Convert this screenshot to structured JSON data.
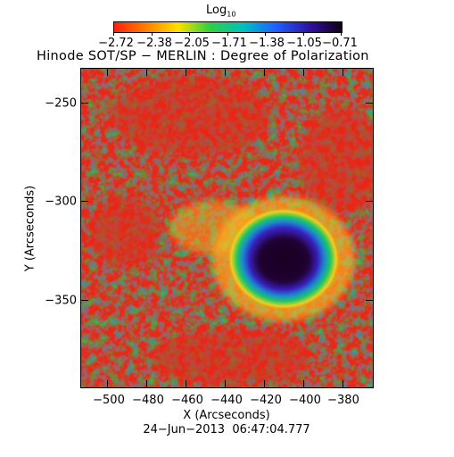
{
  "colorbar": {
    "title": "Log",
    "title_sub": "10",
    "tick_labels": [
      "−2.72",
      "−2.38",
      "−2.05",
      "−1.71",
      "−1.38",
      "−1.05",
      "−0.71"
    ],
    "range": [
      -2.72,
      -0.71
    ]
  },
  "title": "Hinode SOT/SP − MERLIN : Degree of Polarization",
  "xaxis": {
    "label": "X (Arcseconds)",
    "ticks": [
      "−500",
      "−480",
      "−460",
      "−440",
      "−420",
      "−400",
      "−380"
    ]
  },
  "yaxis": {
    "label": "Y (Arcseconds)",
    "ticks": [
      "−250",
      "−300",
      "−350"
    ]
  },
  "timestamp": "24−Jun−2013  06:47:04.777",
  "colors": {
    "low": "#e82010",
    "mid_low": "#ffcc00",
    "mid": "#20d040",
    "mid_high": "#00c0e0",
    "high": "#2020d0",
    "max": "#1a0030"
  }
}
